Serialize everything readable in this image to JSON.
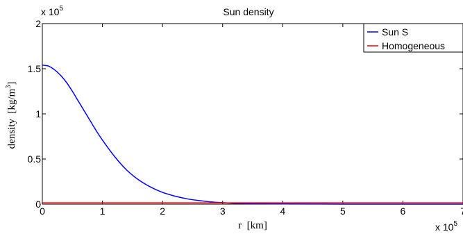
{
  "chart_data": {
    "type": "line",
    "title": "Sun density",
    "xlabel": "r  [km]",
    "ylabel": "density  [kg/m",
    "ylabel_unit_exponent": "3",
    "ylabel_close": "]",
    "x_multiplier": {
      "base": "x 10",
      "exponent": "5"
    },
    "y_multiplier": {
      "base": "x 10",
      "exponent": "5"
    },
    "xlim": [
      0,
      7
    ],
    "ylim": [
      0,
      2
    ],
    "x_ticks": [
      0,
      1,
      2,
      3,
      4,
      5,
      6,
      7
    ],
    "x_tick_labels": [
      "0",
      "1",
      "2",
      "3",
      "4",
      "5",
      "6",
      "7"
    ],
    "y_ticks": [
      0,
      0.5,
      1,
      1.5,
      2
    ],
    "y_tick_labels": [
      "0",
      "0.5",
      "1",
      "1.5",
      "2"
    ],
    "legend_position": "top-right",
    "grid": false,
    "series": [
      {
        "name": "Sun S",
        "color": "#0000ff",
        "x": [
          0,
          0.1,
          0.2,
          0.3,
          0.4,
          0.5,
          0.6,
          0.7,
          0.8,
          0.9,
          1.0,
          1.2,
          1.4,
          1.6,
          1.8,
          2.0,
          2.2,
          2.4,
          2.6,
          2.8,
          3.0,
          3.2,
          3.5,
          4.0,
          4.5,
          5.0,
          6.0,
          7.0
        ],
        "y": [
          1.54,
          1.53,
          1.49,
          1.43,
          1.35,
          1.25,
          1.14,
          1.03,
          0.92,
          0.81,
          0.71,
          0.53,
          0.38,
          0.27,
          0.19,
          0.13,
          0.09,
          0.06,
          0.04,
          0.025,
          0.016,
          0.01,
          0.005,
          0.002,
          0.001,
          0.0005,
          0.0002,
          0.0001
        ]
      },
      {
        "name": "Homogeneous",
        "color": "#ff0000",
        "x": [
          0,
          7
        ],
        "y": [
          0.0141,
          0.0141
        ]
      }
    ]
  }
}
